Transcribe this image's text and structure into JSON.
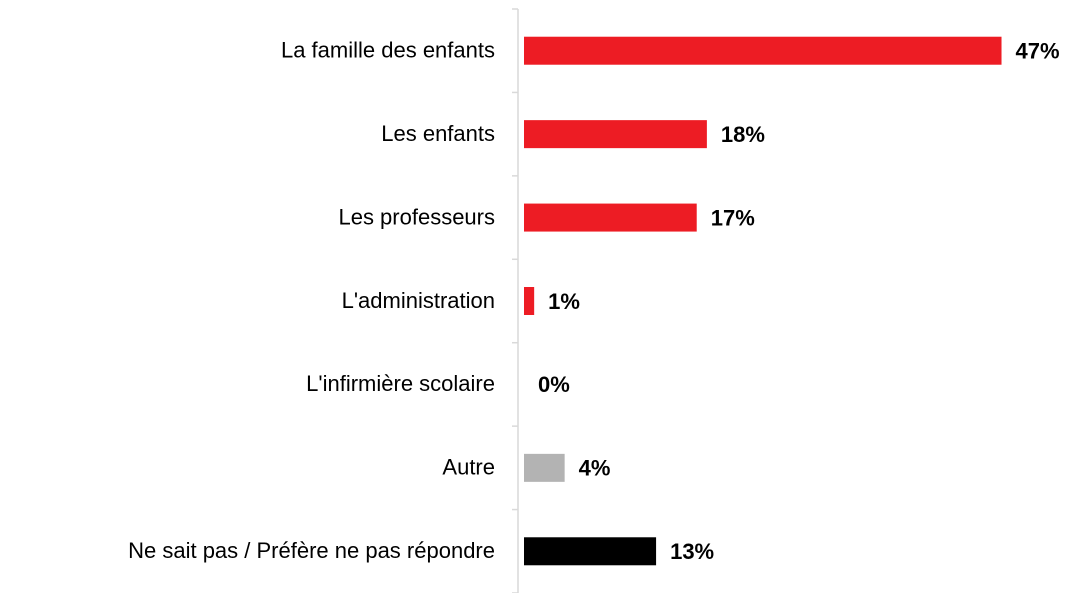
{
  "chart_data": {
    "type": "bar",
    "orientation": "horizontal",
    "categories": [
      "La famille des enfants",
      "Les enfants",
      "Les professeurs",
      "L'administration",
      "L'infirmière scolaire",
      "Autre",
      "Ne sait pas / Préfère ne pas répondre"
    ],
    "values": [
      47,
      18,
      17,
      1,
      0,
      4,
      13
    ],
    "value_labels": [
      "47%",
      "18%",
      "17%",
      "1%",
      "0%",
      "4%",
      "13%"
    ],
    "colors": [
      "#ed1c24",
      "#ed1c24",
      "#ed1c24",
      "#ed1c24",
      "#ed1c24",
      "#b3b3b3",
      "#000000"
    ],
    "xlim": [
      0,
      50
    ]
  }
}
